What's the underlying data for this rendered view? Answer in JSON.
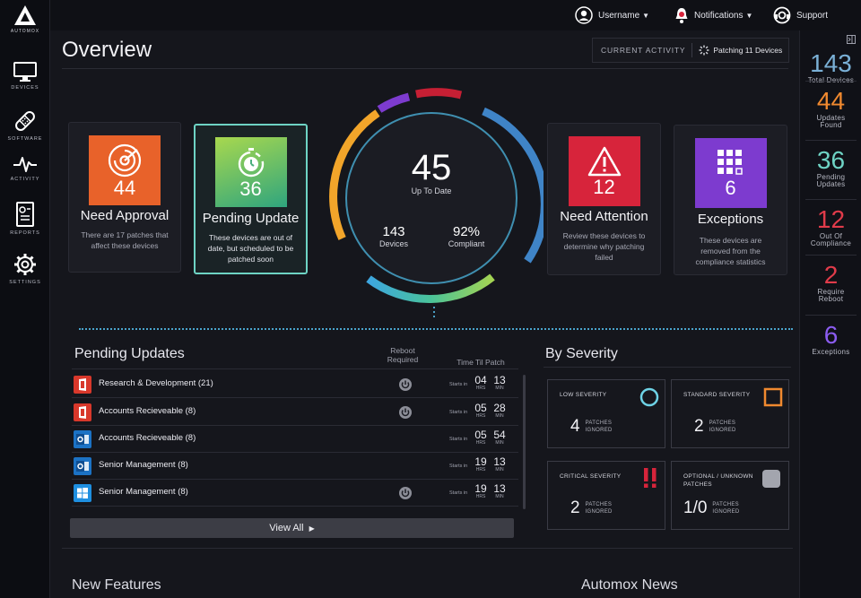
{
  "brand": {
    "logo_text": "AUTOMOX"
  },
  "nav": [
    {
      "label": "DEVICES",
      "icon": "monitor-icon"
    },
    {
      "label": "SOFTWARE",
      "icon": "bandage-icon"
    },
    {
      "label": "ACTIVITY",
      "icon": "pulse-icon"
    },
    {
      "label": "REPORTS",
      "icon": "report-icon"
    },
    {
      "label": "SETTINGS",
      "icon": "gear-icon"
    }
  ],
  "topbar": {
    "username": "Username",
    "notifications": "Notifications",
    "support": "Support"
  },
  "page": {
    "title": "Overview"
  },
  "current_activity": {
    "label": "CURRENT ACTIVITY",
    "value": "Patching 11 Devices"
  },
  "cards": {
    "approval": {
      "num": "44",
      "title": "Need Approval",
      "desc": "There are 17 patches that affect these devices",
      "color": "#e8622a"
    },
    "pending": {
      "num": "36",
      "title": "Pending Update",
      "desc": "These devices are out of date, but scheduled to be patched soon",
      "color": "#4db88b"
    },
    "attention": {
      "num": "12",
      "title": "Need Attention",
      "desc": "Review these devices to determine why patching failed",
      "color": "#d7243b"
    },
    "exceptions": {
      "num": "6",
      "title": "Exceptions",
      "desc": "These devices are removed from the compliance statistics",
      "color": "#7d3bcf"
    }
  },
  "ring": {
    "up_to_date": "45",
    "up_to_date_label": "Up To Date",
    "devices": "143",
    "devices_label": "Devices",
    "compliant": "92%",
    "compliant_label": "Compliant"
  },
  "rail": [
    {
      "num": "143",
      "label": "Total Devices",
      "color": "#7ab0d6"
    },
    {
      "num": "44",
      "label": "Updates Found",
      "color": "#f0892f"
    },
    {
      "num": "36",
      "label": "Pending Updates",
      "color": "#6ed3c4"
    },
    {
      "num": "12",
      "label": "Out Of Compliance",
      "color": "#e03b4a"
    },
    {
      "num": "2",
      "label": "Require Reboot",
      "color": "#e03b4a"
    },
    {
      "num": "6",
      "label": "Exceptions",
      "color": "#8b5cf0"
    }
  ],
  "pending_updates": {
    "title": "Pending Updates",
    "col_reboot": "Reboot Required",
    "col_time": "Time Til Patch",
    "starts_label": "Starts in",
    "hrs_label": "HRS",
    "min_label": "MIN",
    "rows": [
      {
        "name": "Research & Development (21)",
        "app": "office",
        "reboot": true,
        "hrs": "04",
        "min": "13"
      },
      {
        "name": "Accounts Recieveable (8)",
        "app": "office",
        "reboot": true,
        "hrs": "05",
        "min": "28"
      },
      {
        "name": "Accounts Recieveable (8)",
        "app": "outlook",
        "reboot": false,
        "hrs": "05",
        "min": "54"
      },
      {
        "name": "Senior Management (8)",
        "app": "outlook",
        "reboot": false,
        "hrs": "19",
        "min": "13"
      },
      {
        "name": "Senior Management (8)",
        "app": "windows",
        "reboot": true,
        "hrs": "19",
        "min": "13"
      }
    ],
    "view_all": "View All"
  },
  "severity": {
    "title": "By Severity",
    "items": [
      {
        "label": "LOW SEVERITY",
        "value": "4",
        "sub1": "PATCHES",
        "sub2": "IGNORED",
        "icon": "circle-icon"
      },
      {
        "label": "STANDARD SEVERITY",
        "value": "2",
        "sub1": "PATCHES",
        "sub2": "IGNORED",
        "icon": "square-icon"
      },
      {
        "label": "CRITICAL SEVERITY",
        "value": "2",
        "sub1": "PATCHES",
        "sub2": "IGNORED",
        "icon": "double-exclamation-icon"
      },
      {
        "label": "OPTIONAL / UNKNOWN PATCHES",
        "value": "1/0",
        "sub1": "PATCHES",
        "sub2": "IGNORED",
        "icon": "rounded-square-icon"
      }
    ]
  },
  "bottom": {
    "new_features": "New Features",
    "news": "Automox News"
  }
}
